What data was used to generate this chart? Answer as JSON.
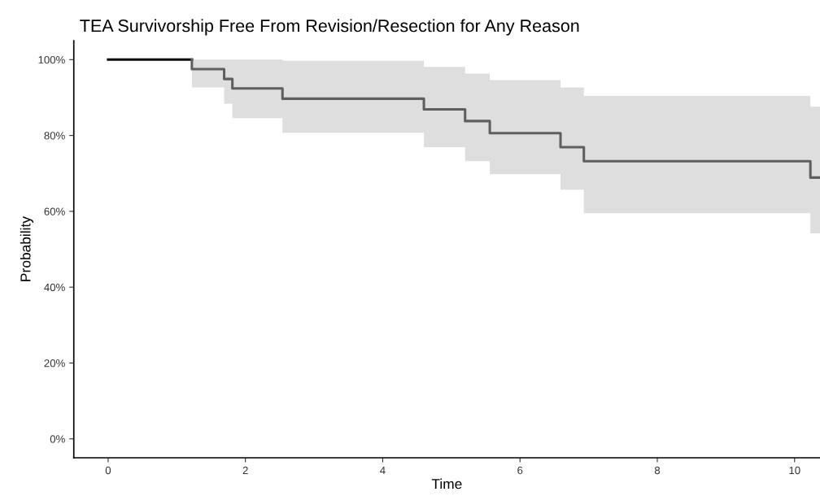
{
  "chart_data": {
    "type": "step",
    "title": "TEA Survivorship Free From Revision/Resection for Any Reason",
    "xlabel": "Time",
    "ylabel": "Probability",
    "series": [
      {
        "color": "#000000",
        "x": [
          0,
          1.22
        ],
        "values": [
          100,
          100
        ]
      },
      {
        "color": "#5f5f5f",
        "x": [
          1.22,
          1.22,
          1.69,
          1.81,
          2.54,
          4.6,
          5.2,
          5.56,
          6.59,
          6.93,
          10.23,
          10.37
        ],
        "values": [
          100,
          97.5,
          94.9,
          92.4,
          89.7,
          86.9,
          83.8,
          80.6,
          76.9,
          73.2,
          68.9,
          68.9
        ],
        "lower": [
          92.7,
          92.7,
          88.4,
          84.6,
          80.7,
          76.9,
          73.2,
          69.8,
          65.7,
          59.5,
          54.2,
          54.2
        ],
        "upper": [
          100,
          100,
          100,
          100,
          99.7,
          98.1,
          96.3,
          94.6,
          92.7,
          90.4,
          87.6,
          87.6
        ]
      }
    ],
    "xlim": [
      -0.5,
      10.37
    ],
    "xticks": [
      0,
      2,
      4,
      6,
      8,
      10
    ],
    "ylim": [
      -5,
      105
    ],
    "yticks": [
      {
        "value": 0,
        "label": "0%"
      },
      {
        "value": 20,
        "label": "20%"
      },
      {
        "value": 40,
        "label": "40%"
      },
      {
        "value": 60,
        "label": "60%"
      },
      {
        "value": 80,
        "label": "80%"
      },
      {
        "value": 100,
        "label": "100%"
      }
    ],
    "grid": false,
    "legend": false,
    "line_style": "solid"
  }
}
